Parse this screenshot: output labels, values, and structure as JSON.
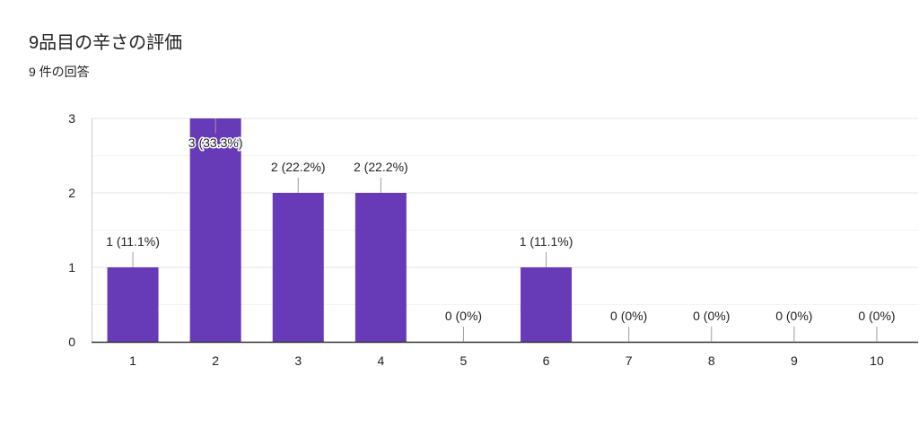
{
  "header": {
    "title": "9品目の辛さの評価",
    "response_count": "9 件の回答"
  },
  "chart_data": {
    "type": "bar",
    "categories": [
      "1",
      "2",
      "3",
      "4",
      "5",
      "6",
      "7",
      "8",
      "9",
      "10"
    ],
    "values": [
      1,
      3,
      2,
      2,
      0,
      1,
      0,
      0,
      0,
      0
    ],
    "data_labels": [
      "1 (11.1%)",
      "3 (33.3%)",
      "2 (22.2%)",
      "2 (22.2%)",
      "0 (0%)",
      "1 (11.1%)",
      "0 (0%)",
      "0 (0%)",
      "0 (0%)",
      "0 (0%)"
    ],
    "yticks": [
      "0",
      "1",
      "2",
      "3"
    ],
    "ylim": [
      0,
      3
    ],
    "grid": true,
    "bar_color": "#673ab7"
  }
}
